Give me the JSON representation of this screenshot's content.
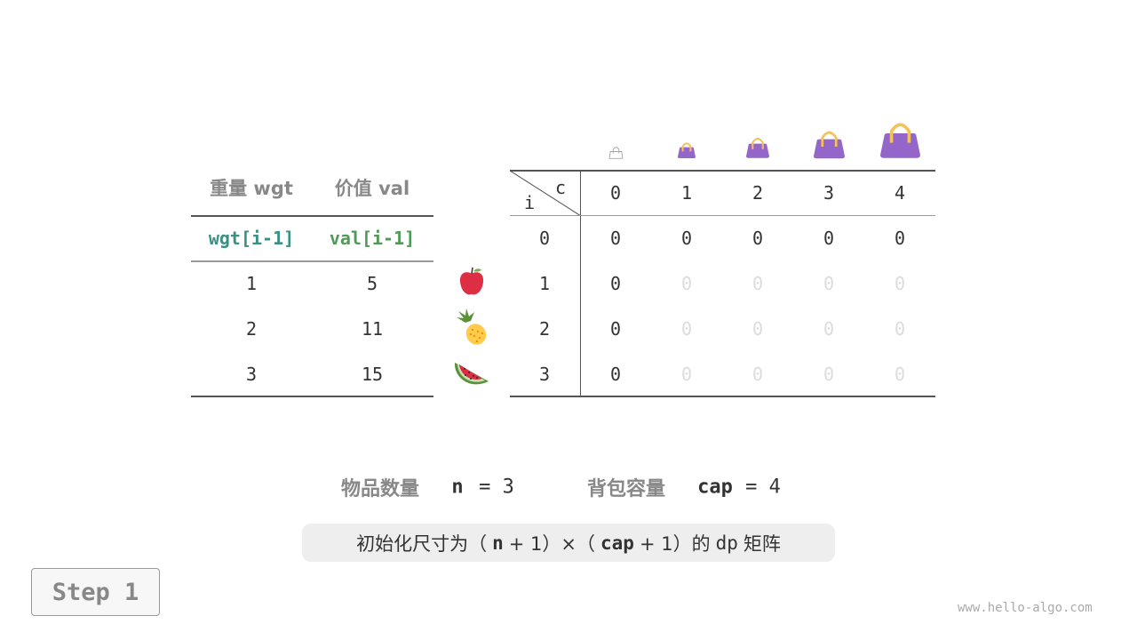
{
  "left_table": {
    "headers": [
      "重量 wgt",
      "价值 val"
    ],
    "subheaders": [
      "wgt[i-1]",
      "val[i-1]"
    ],
    "rows": [
      [
        "1",
        "5"
      ],
      [
        "2",
        "11"
      ],
      [
        "3",
        "15"
      ]
    ],
    "fruits": [
      "apple-icon",
      "pineapple-icon",
      "watermelon-icon"
    ]
  },
  "dp_table": {
    "corner_col_label": "c",
    "corner_row_label": "i",
    "col_headers": [
      "0",
      "1",
      "2",
      "3",
      "4"
    ],
    "row_headers": [
      "0",
      "1",
      "2",
      "3"
    ],
    "cells": [
      [
        "0",
        "0",
        "0",
        "0",
        "0"
      ],
      [
        "0",
        "0",
        "0",
        "0",
        "0"
      ],
      [
        "0",
        "0",
        "0",
        "0",
        "0"
      ],
      [
        "0",
        "0",
        "0",
        "0",
        "0"
      ]
    ],
    "bag_icons": [
      "bag-outline-icon",
      "bag-icon",
      "bag-icon",
      "bag-icon",
      "bag-icon"
    ]
  },
  "info": {
    "count_label": "物品数量",
    "n_var": "n",
    "n_eq": "= 3",
    "cap_label": "背包容量",
    "cap_var": "cap",
    "cap_eq": "= 4"
  },
  "caption": {
    "prefix": "初始化尺寸为（",
    "n": "n",
    "plus1": "+ 1）×（",
    "cap": "cap",
    "plus2": "+ 1）的",
    "dp": "dp",
    "suffix": "矩阵"
  },
  "step_label": "Step 1",
  "watermark": "www.hello-algo.com",
  "colors": {
    "teal": "#3a9085",
    "green": "#4f9a56",
    "bag": "#9566c9",
    "handle": "#f5c15a",
    "faint": "#dcdcdc"
  }
}
